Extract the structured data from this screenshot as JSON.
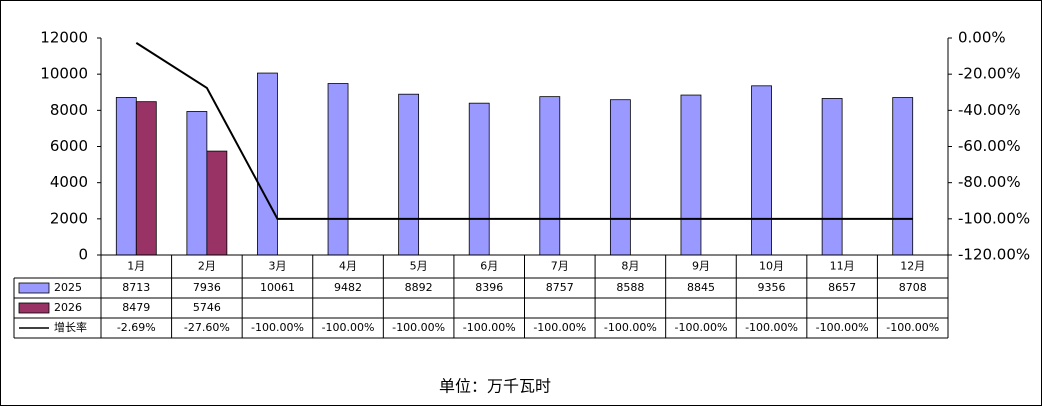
{
  "chart_data": {
    "type": "bar-line-table",
    "categories": [
      "1月",
      "2月",
      "3月",
      "4月",
      "5月",
      "6月",
      "7月",
      "8月",
      "9月",
      "10月",
      "11月",
      "12月"
    ],
    "series": [
      {
        "name": "2025",
        "type": "bar",
        "color": "#9999ff",
        "values": [
          8713,
          7936,
          10061,
          9482,
          8892,
          8396,
          8757,
          8588,
          8845,
          9356,
          8657,
          8708
        ]
      },
      {
        "name": "2026",
        "type": "bar",
        "color": "#993366",
        "values": [
          8479,
          5746,
          null,
          null,
          null,
          null,
          null,
          null,
          null,
          null,
          null,
          null
        ]
      },
      {
        "name": "增长率",
        "type": "line",
        "axis": "y2",
        "color": "#000000",
        "values": [
          -2.69,
          -27.6,
          -100,
          -100,
          -100,
          -100,
          -100,
          -100,
          -100,
          -100,
          -100,
          -100
        ],
        "value_labels": [
          "-2.69%",
          "-27.60%",
          "-100.00%",
          "-100.00%",
          "-100.00%",
          "-100.00%",
          "-100.00%",
          "-100.00%",
          "-100.00%",
          "-100.00%",
          "-100.00%",
          "-100.00%"
        ]
      }
    ],
    "ylim": [
      0,
      12000
    ],
    "yticks": [
      0,
      2000,
      4000,
      6000,
      8000,
      10000,
      12000
    ],
    "y2lim": [
      -120,
      0
    ],
    "y2ticks": [
      {
        "value": 0,
        "label": "0.00%"
      },
      {
        "value": -20,
        "label": "-20.00%"
      },
      {
        "value": -40,
        "label": "-40.00%"
      },
      {
        "value": -60,
        "label": "-60.00%"
      },
      {
        "value": -80,
        "label": "-80.00%"
      },
      {
        "value": -100,
        "label": "-100.00%"
      },
      {
        "value": -120,
        "label": "-120.00%"
      }
    ],
    "note": "单位：万千瓦时"
  }
}
